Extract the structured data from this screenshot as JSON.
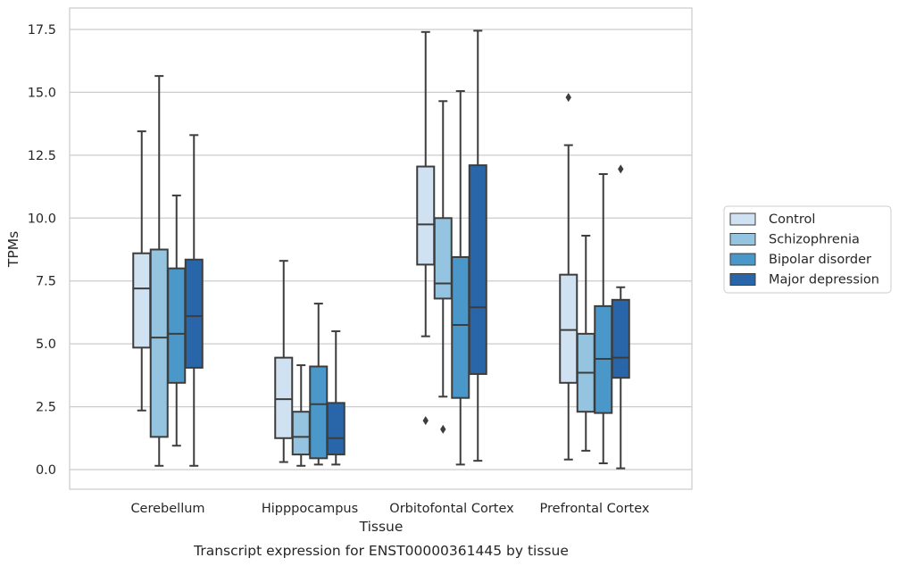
{
  "chart_data": {
    "type": "box",
    "title": "Transcript expression for ENST00000361445 by tissue",
    "xlabel": "Tissue",
    "ylabel": "TPMs",
    "ylim": [
      -0.8,
      18.4
    ],
    "yticks": [
      "0.0",
      "2.5",
      "5.0",
      "7.5",
      "10.0",
      "12.5",
      "15.0",
      "17.5"
    ],
    "ytick_values": [
      0,
      2.5,
      5,
      7.5,
      10,
      12.5,
      15,
      17.5
    ],
    "grid": "horizontal",
    "legend_position": "right",
    "categories": [
      "Cerebellum",
      "Hipppocampus",
      "Orbitofontal Cortex",
      "Prefrontal Cortex"
    ],
    "series": [
      {
        "name": "Control",
        "color": "#d0e1f2",
        "boxes": [
          {
            "whisker_low": 2.35,
            "q1": 4.85,
            "median": 7.2,
            "q3": 8.6,
            "whisker_high": 13.45,
            "outliers": []
          },
          {
            "whisker_low": 0.3,
            "q1": 1.25,
            "median": 2.8,
            "q3": 4.45,
            "whisker_high": 8.3,
            "outliers": []
          },
          {
            "whisker_low": 5.3,
            "q1": 8.15,
            "median": 9.75,
            "q3": 12.05,
            "whisker_high": 17.4,
            "outliers": [
              1.95
            ]
          },
          {
            "whisker_low": 0.4,
            "q1": 3.45,
            "median": 5.55,
            "q3": 7.75,
            "whisker_high": 12.9,
            "outliers": [
              14.8
            ]
          }
        ]
      },
      {
        "name": "Schizophrenia",
        "color": "#94c4df",
        "boxes": [
          {
            "whisker_low": 0.15,
            "q1": 1.3,
            "median": 5.25,
            "q3": 8.75,
            "whisker_high": 15.65,
            "outliers": []
          },
          {
            "whisker_low": 0.15,
            "q1": 0.6,
            "median": 1.3,
            "q3": 2.3,
            "whisker_high": 4.15,
            "outliers": []
          },
          {
            "whisker_low": 2.9,
            "q1": 6.8,
            "median": 7.4,
            "q3": 10.0,
            "whisker_high": 14.65,
            "outliers": [
              1.6
            ]
          },
          {
            "whisker_low": 0.75,
            "q1": 2.3,
            "median": 3.85,
            "q3": 5.4,
            "whisker_high": 9.3,
            "outliers": []
          }
        ]
      },
      {
        "name": "Bipolar disorder",
        "color": "#4a98c9",
        "boxes": [
          {
            "whisker_low": 0.95,
            "q1": 3.45,
            "median": 5.4,
            "q3": 8.0,
            "whisker_high": 10.9,
            "outliers": []
          },
          {
            "whisker_low": 0.2,
            "q1": 0.45,
            "median": 2.6,
            "q3": 4.1,
            "whisker_high": 6.6,
            "outliers": []
          },
          {
            "whisker_low": 0.2,
            "q1": 2.85,
            "median": 5.75,
            "q3": 8.45,
            "whisker_high": 15.05,
            "outliers": []
          },
          {
            "whisker_low": 0.25,
            "q1": 2.25,
            "median": 4.4,
            "q3": 6.5,
            "whisker_high": 11.75,
            "outliers": []
          }
        ]
      },
      {
        "name": "Major depression",
        "color": "#2866a9",
        "boxes": [
          {
            "whisker_low": 0.15,
            "q1": 4.05,
            "median": 6.1,
            "q3": 8.35,
            "whisker_high": 13.3,
            "outliers": []
          },
          {
            "whisker_low": 0.2,
            "q1": 0.6,
            "median": 1.25,
            "q3": 2.65,
            "whisker_high": 5.5,
            "outliers": []
          },
          {
            "whisker_low": 0.35,
            "q1": 3.8,
            "median": 6.45,
            "q3": 12.1,
            "whisker_high": 17.45,
            "outliers": []
          },
          {
            "whisker_low": 0.05,
            "q1": 3.65,
            "median": 4.45,
            "q3": 6.75,
            "whisker_high": 7.25,
            "outliers": [
              11.95
            ]
          }
        ]
      }
    ]
  }
}
